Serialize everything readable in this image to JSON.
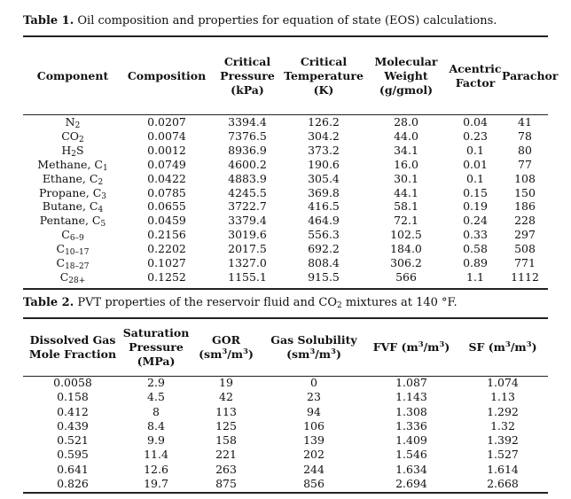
{
  "table1": {
    "label": "Table 1.",
    "caption": "Oil composition and properties for equation of state (EOS) calculations.",
    "headers": [
      [
        "Component"
      ],
      [
        "Composition"
      ],
      [
        "Critical",
        "Pressure",
        "(kPa)"
      ],
      [
        "Critical",
        "Temperature",
        "(K)"
      ],
      [
        "Molecular",
        "Weight",
        "(g/gmol)"
      ],
      [
        "Acentric",
        "Factor"
      ],
      [
        "Parachor"
      ]
    ],
    "rows": [
      {
        "component": [
          "N",
          "2",
          ""
        ],
        "composition": "0.0207",
        "pressure": "3394.4",
        "temperature": "126.2",
        "weight": "28.0",
        "acentric": "0.04",
        "parachor": "41"
      },
      {
        "component": [
          "CO",
          "2",
          ""
        ],
        "composition": "0.0074",
        "pressure": "7376.5",
        "temperature": "304.2",
        "weight": "44.0",
        "acentric": "0.23",
        "parachor": "78"
      },
      {
        "component": [
          "H",
          "2",
          "S"
        ],
        "composition": "0.0012",
        "pressure": "8936.9",
        "temperature": "373.2",
        "weight": "34.1",
        "acentric": "0.1",
        "parachor": "80"
      },
      {
        "component": [
          "Methane, C",
          "1",
          ""
        ],
        "composition": "0.0749",
        "pressure": "4600.2",
        "temperature": "190.6",
        "weight": "16.0",
        "acentric": "0.01",
        "parachor": "77"
      },
      {
        "component": [
          "Ethane, C",
          "2",
          ""
        ],
        "composition": "0.0422",
        "pressure": "4883.9",
        "temperature": "305.4",
        "weight": "30.1",
        "acentric": "0.1",
        "parachor": "108"
      },
      {
        "component": [
          "Propane, C",
          "3",
          ""
        ],
        "composition": "0.0785",
        "pressure": "4245.5",
        "temperature": "369.8",
        "weight": "44.1",
        "acentric": "0.15",
        "parachor": "150"
      },
      {
        "component": [
          "Butane, C",
          "4",
          ""
        ],
        "composition": "0.0655",
        "pressure": "3722.7",
        "temperature": "416.5",
        "weight": "58.1",
        "acentric": "0.19",
        "parachor": "186"
      },
      {
        "component": [
          "Pentane, C",
          "5",
          ""
        ],
        "composition": "0.0459",
        "pressure": "3379.4",
        "temperature": "464.9",
        "weight": "72.1",
        "acentric": "0.24",
        "parachor": "228"
      },
      {
        "component": [
          "C",
          "6–9",
          ""
        ],
        "composition": "0.2156",
        "pressure": "3019.6",
        "temperature": "556.3",
        "weight": "102.5",
        "acentric": "0.33",
        "parachor": "297"
      },
      {
        "component": [
          "C",
          "10–17",
          ""
        ],
        "composition": "0.2202",
        "pressure": "2017.5",
        "temperature": "692.2",
        "weight": "184.0",
        "acentric": "0.58",
        "parachor": "508"
      },
      {
        "component": [
          "C",
          "18–27",
          ""
        ],
        "composition": "0.1027",
        "pressure": "1327.0",
        "temperature": "808.4",
        "weight": "306.2",
        "acentric": "0.89",
        "parachor": "771"
      },
      {
        "component": [
          "C",
          "28+",
          ""
        ],
        "composition": "0.1252",
        "pressure": "1155.1",
        "temperature": "915.5",
        "weight": "566",
        "acentric": "1.1",
        "parachor": "1112"
      }
    ]
  },
  "table2": {
    "label": "Table 2.",
    "caption_pre": "PVT properties of the reservoir fluid and CO",
    "caption_sub": "2",
    "caption_post": " mixtures at 140 °F.",
    "headers": {
      "dissolved": [
        "Dissolved Gas",
        "Mole Fraction"
      ],
      "saturation": [
        "Saturation",
        "Pressure",
        "(MPa)"
      ],
      "gor": {
        "pre": "GOR",
        "unit_pre": "(sm",
        "sup1": "3",
        "mid": "/m",
        "sup2": "3",
        "post": ")"
      },
      "solubility": {
        "pre": "Gas Solubility",
        "unit_pre": "(sm",
        "sup1": "3",
        "mid": "/m",
        "sup2": "3",
        "post": ")"
      },
      "fvf": {
        "pre": "FVF (m",
        "sup1": "3",
        "mid": "/m",
        "sup2": "3",
        "post": ")"
      },
      "sf": {
        "pre": "SF (m",
        "sup1": "3",
        "mid": "/m",
        "sup2": "3",
        "post": ")"
      }
    },
    "rows": [
      [
        "0.0058",
        "2.9",
        "19",
        "0",
        "1.087",
        "1.074"
      ],
      [
        "0.158",
        "4.5",
        "42",
        "23",
        "1.143",
        "1.13"
      ],
      [
        "0.412",
        "8",
        "113",
        "94",
        "1.308",
        "1.292"
      ],
      [
        "0.439",
        "8.4",
        "125",
        "106",
        "1.336",
        "1.32"
      ],
      [
        "0.521",
        "9.9",
        "158",
        "139",
        "1.409",
        "1.392"
      ],
      [
        "0.595",
        "11.4",
        "221",
        "202",
        "1.546",
        "1.527"
      ],
      [
        "0.641",
        "12.6",
        "263",
        "244",
        "1.634",
        "1.614"
      ],
      [
        "0.826",
        "19.7",
        "875",
        "856",
        "2.694",
        "2.668"
      ]
    ]
  }
}
